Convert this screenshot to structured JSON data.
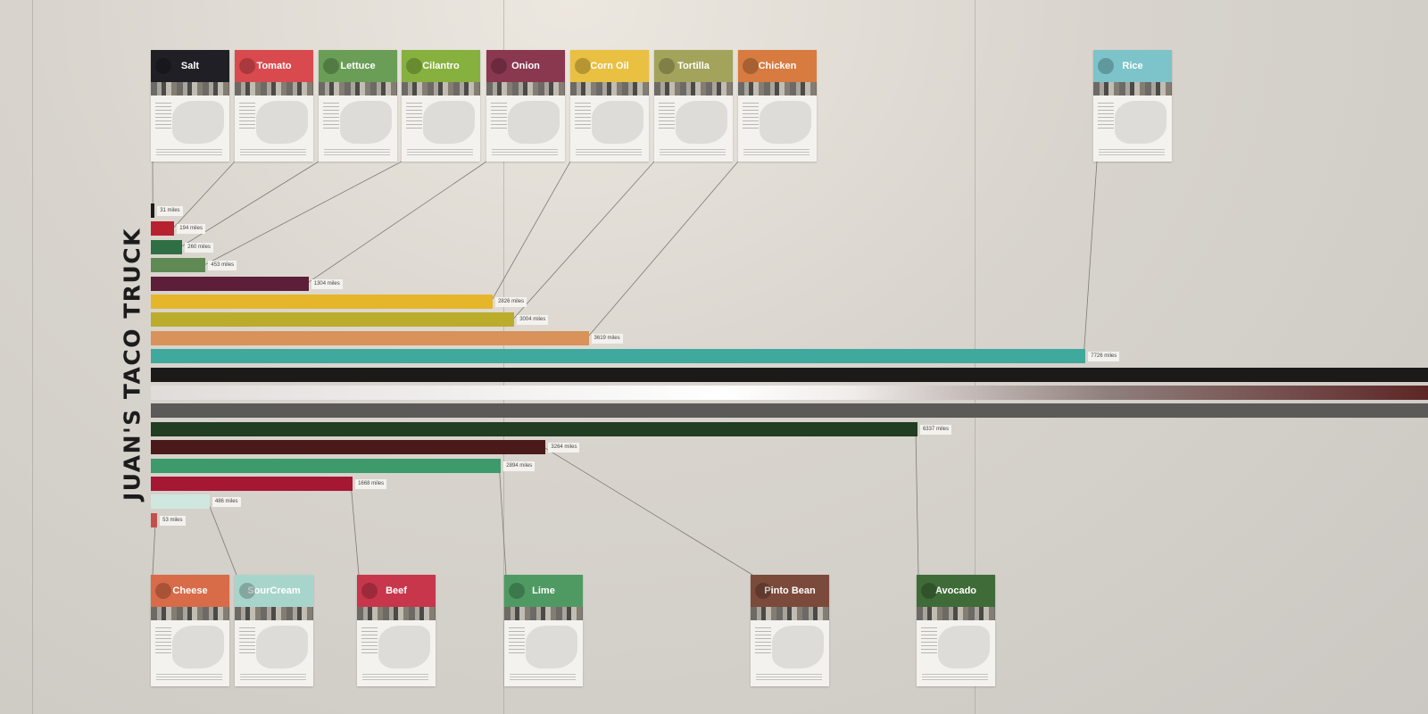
{
  "title": "JUAN'S TACO TRUCK",
  "chart_data": {
    "type": "bar",
    "orientation": "horizontal",
    "unit": "miles",
    "bars": [
      {
        "value": 31,
        "label": "31 miles",
        "color": "#1c1c1c"
      },
      {
        "value": 194,
        "label": "194 miles",
        "color": "#b8212f"
      },
      {
        "value": 260,
        "label": "260 miles",
        "color": "#2e7044"
      },
      {
        "value": 453,
        "label": "453 miles",
        "color": "#5f8a53"
      },
      {
        "value": 1304,
        "label": "1304 miles",
        "color": "#5c1e38"
      },
      {
        "value": 2826,
        "label": "2826 miles",
        "color": "#e6b62a"
      },
      {
        "value": 3004,
        "label": "3004 miles",
        "color": "#bcac2c"
      },
      {
        "value": 3619,
        "label": "3619 miles",
        "color": "#d9925a"
      },
      {
        "value": 7726,
        "label": "7726 miles",
        "color": "#3fa99d"
      },
      {
        "value": 12000,
        "label": "",
        "color": "#1c1a19"
      },
      {
        "value": 12000,
        "label": "",
        "color": "#d8c9c4"
      },
      {
        "value": 12000,
        "label": "",
        "color": "#5c5a58"
      },
      {
        "value": 6337,
        "label": "6337 miles",
        "color": "#213d22"
      },
      {
        "value": 3264,
        "label": "3264 miles",
        "color": "#4a1a1a"
      },
      {
        "value": 2894,
        "label": "2894 miles",
        "color": "#3d9a6b"
      },
      {
        "value": 1668,
        "label": "1668 miles",
        "color": "#a51733"
      },
      {
        "value": 486,
        "label": "486 miles",
        "color": "#cfe7df"
      },
      {
        "value": 53,
        "label": "53 miles",
        "color": "#c2504a"
      }
    ],
    "ingredients_top": [
      {
        "name": "Salt",
        "color": "#1f1f25",
        "bar": 0
      },
      {
        "name": "Tomato",
        "color": "#d94a4e",
        "bar": 1
      },
      {
        "name": "Lettuce",
        "color": "#6a9e56",
        "bar": 2
      },
      {
        "name": "Cilantro",
        "color": "#86b13e",
        "bar": 3
      },
      {
        "name": "Onion",
        "color": "#8a3750",
        "bar": 4
      },
      {
        "name": "Corn Oil",
        "color": "#e9c042",
        "bar": 5
      },
      {
        "name": "Tortilla",
        "color": "#a3a35b",
        "bar": 6
      },
      {
        "name": "Chicken",
        "color": "#d77b40",
        "bar": 7
      },
      {
        "name": "Rice",
        "color": "#7cc4c9",
        "bar": 8
      }
    ],
    "ingredients_bottom": [
      {
        "name": "Cheese",
        "color": "#d86b48",
        "bar": 17
      },
      {
        "name": "SourCream",
        "color": "#a8d5cb",
        "bar": 16
      },
      {
        "name": "Beef",
        "color": "#c8364b",
        "bar": 15
      },
      {
        "name": "Lime",
        "color": "#4f9a63",
        "bar": 14
      },
      {
        "name": "Pinto Bean",
        "color": "#7b4a3a",
        "bar": 13
      },
      {
        "name": "Avocado",
        "color": "#3f6b38",
        "bar": 12
      }
    ]
  }
}
